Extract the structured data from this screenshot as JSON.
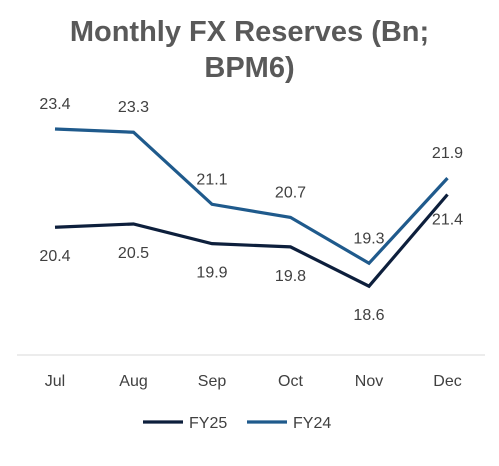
{
  "chart_data": {
    "type": "line",
    "title_line1": "Monthly FX Reserves (Bn;",
    "title_line2": "BPM6)",
    "categories": [
      "Jul",
      "Aug",
      "Sep",
      "Oct",
      "Nov",
      "Dec"
    ],
    "series": [
      {
        "name": "FY25",
        "color": "#0d1f3c",
        "values": [
          20.4,
          20.5,
          19.9,
          19.8,
          18.6,
          21.4
        ],
        "labels": [
          "20.4",
          "20.5",
          "19.9",
          "19.8",
          "18.6",
          "21.4"
        ]
      },
      {
        "name": "FY24",
        "color": "#1f5a8c",
        "values": [
          23.4,
          23.3,
          21.1,
          20.7,
          19.3,
          21.9
        ],
        "labels": [
          "23.4",
          "23.3",
          "21.1",
          "20.7",
          "19.3",
          "21.9"
        ]
      }
    ],
    "ylim": [
      16.5,
      25.2
    ],
    "grid": false,
    "legend_position": "bottom"
  }
}
